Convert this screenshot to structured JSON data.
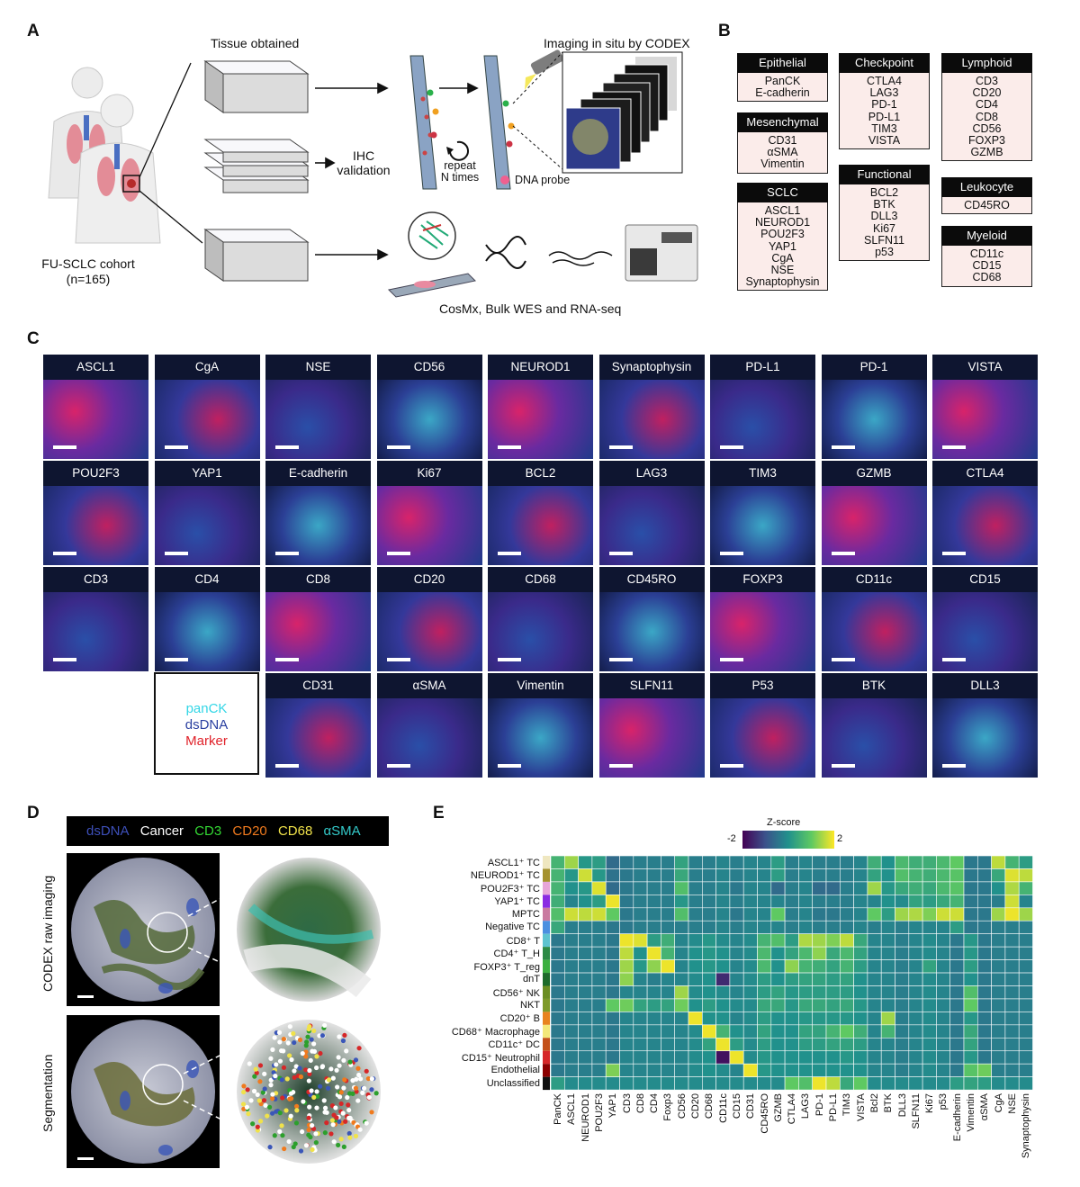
{
  "panel_a": {
    "letter": "A",
    "tissue_obtained": "Tissue obtained",
    "imaging_title": "Imaging in situ by CODEX",
    "ihc_label": [
      "IHC",
      "validation"
    ],
    "repeat_label": [
      "repeat",
      "N times"
    ],
    "dna_probe": "DNA probe",
    "cohort_label": [
      "FU-SCLC cohort",
      "(n=165)"
    ],
    "cosmx_label": "CosMx, Bulk WES and RNA-seq"
  },
  "panel_b": {
    "letter": "B",
    "groups": [
      {
        "title": "Epithelial",
        "items": [
          "PanCK",
          "E-cadherin"
        ]
      },
      {
        "title": "Mesenchymal",
        "items": [
          "CD31",
          "αSMA",
          "Vimentin"
        ]
      },
      {
        "title": "SCLC",
        "items": [
          "ASCL1",
          "NEUROD1",
          "POU2F3",
          "YAP1",
          "CgA",
          "NSE",
          "Synaptophysin"
        ]
      },
      {
        "title": "Checkpoint",
        "items": [
          "CTLA4",
          "LAG3",
          "PD-1",
          "PD-L1",
          "TIM3",
          "VISTA"
        ]
      },
      {
        "title": "Functional",
        "items": [
          "BCL2",
          "BTK",
          "DLL3",
          "Ki67",
          "SLFN11",
          "p53"
        ]
      },
      {
        "title": "Lymphoid",
        "items": [
          "CD3",
          "CD20",
          "CD4",
          "CD8",
          "CD56",
          "FOXP3",
          "GZMB"
        ]
      },
      {
        "title": "Leukocyte",
        "items": [
          "CD45RO"
        ]
      },
      {
        "title": "Myeloid",
        "items": [
          "CD11c",
          "CD15",
          "CD68"
        ]
      }
    ]
  },
  "panel_c": {
    "letter": "C",
    "rows": [
      [
        "ASCL1",
        "CgA",
        "NSE",
        "CD56",
        "NEUROD1",
        "Synaptophysin",
        "PD-L1",
        "PD-1",
        "VISTA"
      ],
      [
        "POU2F3",
        "YAP1",
        "E-cadherin",
        "Ki67",
        "BCL2",
        "LAG3",
        "TIM3",
        "GZMB",
        "CTLA4"
      ],
      [
        "CD3",
        "CD4",
        "CD8",
        "CD20",
        "CD68",
        "CD45RO",
        "FOXP3",
        "CD11c",
        "CD15"
      ],
      [
        "",
        "",
        "CD31",
        "αSMA",
        "Vimentin",
        "SLFN11",
        "P53",
        "BTK",
        "DLL3"
      ]
    ],
    "legend": [
      {
        "text": "panCK",
        "color": "#33d6e6"
      },
      {
        "text": "dsDNA",
        "color": "#2a3fa0"
      },
      {
        "text": "Marker",
        "color": "#e0222a"
      }
    ]
  },
  "panel_d": {
    "letter": "D",
    "legend": [
      {
        "text": "dsDNA",
        "color": "#3d4fb8"
      },
      {
        "text": "Cancer",
        "color": "#ffffff"
      },
      {
        "text": "CD3",
        "color": "#33d633"
      },
      {
        "text": "CD20",
        "color": "#f07a1e"
      },
      {
        "text": "CD68",
        "color": "#f0e24a"
      },
      {
        "text": "αSMA",
        "color": "#33c9c9"
      }
    ],
    "row_labels": [
      "CODEX raw imaging",
      "Segmentation"
    ]
  },
  "panel_e": {
    "letter": "E",
    "colorbar_title": "Z-score",
    "colorbar_min": "-2",
    "colorbar_max": "2"
  },
  "chart_data": {
    "type": "heatmap",
    "title": "",
    "colorbar": {
      "label": "Z-score",
      "range": [
        -2,
        2
      ]
    },
    "rows": [
      "ASCL1⁺ TC",
      "NEUROD1⁺ TC",
      "POU2F3⁺ TC",
      "YAP1⁺ TC",
      "MPTC",
      "Negative TC",
      "CD8⁺ T",
      "CD4⁺ T_H",
      "FOXP3⁺ T_reg",
      "dnT",
      "CD56⁺ NK",
      "NKT",
      "CD20⁺ B",
      "CD68⁺ Macrophage",
      "CD11c⁺ DC",
      "CD15⁺ Neutrophil",
      "Endothelial",
      "Unclassified"
    ],
    "row_colors": [
      "#efe7c0",
      "#a5922f",
      "#e7a6d8",
      "#8a2be2",
      "#c97aa0",
      "#4b8fe0",
      "#5ec3cf",
      "#2d8a46",
      "#3cb040",
      "#1d6b2a",
      "#6b8e23",
      "#7e9a2a",
      "#e8831f",
      "#f3e87a",
      "#c4511a",
      "#d62728",
      "#8b0000",
      "#111111"
    ],
    "columns": [
      "PanCK",
      "ASCL1",
      "NEUROD1",
      "POU2F3",
      "YAP1",
      "CD3",
      "CD8",
      "CD4",
      "Foxp3",
      "CD56",
      "CD20",
      "CD68",
      "CD11c",
      "CD15",
      "CD31",
      "CD45RO",
      "GZMB",
      "CTLA4",
      "LAG3",
      "PD-1",
      "PD-L1",
      "TIM3",
      "VISTA",
      "Bcl2",
      "BTK",
      "DLL3",
      "SLFN11",
      "Ki67",
      "p53",
      "E-cadherin",
      "Vimentin",
      "αSMA",
      "CgA",
      "NSE",
      "Synaptophysin"
    ],
    "values": [
      [
        0.6,
        1.4,
        0.1,
        0.2,
        -0.6,
        -0.4,
        -0.3,
        -0.3,
        -0.3,
        0.3,
        -0.3,
        -0.3,
        -0.2,
        -0.3,
        -0.2,
        -0.2,
        0.2,
        -0.3,
        -0.2,
        -0.3,
        -0.3,
        -0.3,
        -0.2,
        0.5,
        0.0,
        0.7,
        0.5,
        0.5,
        0.7,
        1.0,
        -0.4,
        -0.4,
        1.6,
        0.6,
        0.2
      ],
      [
        0.6,
        0.1,
        1.7,
        0.1,
        -0.5,
        -0.4,
        -0.3,
        -0.3,
        -0.3,
        0.4,
        -0.3,
        -0.3,
        -0.2,
        -0.3,
        -0.2,
        -0.2,
        0.2,
        -0.3,
        -0.2,
        -0.3,
        -0.3,
        -0.3,
        -0.2,
        0.3,
        0.0,
        0.8,
        0.6,
        0.5,
        0.7,
        0.9,
        -0.4,
        -0.4,
        0.4,
        1.8,
        1.6
      ],
      [
        0.6,
        0.0,
        0.1,
        1.8,
        -0.6,
        -0.4,
        -0.3,
        -0.3,
        -0.3,
        0.8,
        -0.3,
        -0.3,
        -0.2,
        -0.4,
        -0.2,
        -0.2,
        -0.6,
        -0.3,
        -0.2,
        -0.6,
        -0.6,
        -0.3,
        -0.2,
        1.4,
        0.1,
        0.4,
        0.5,
        0.4,
        0.7,
        0.9,
        -0.4,
        -0.4,
        0.0,
        1.5,
        0.6
      ],
      [
        0.5,
        -0.2,
        0.0,
        0.2,
        1.9,
        -0.4,
        -0.3,
        -0.3,
        -0.3,
        0.1,
        -0.3,
        -0.3,
        -0.2,
        -0.3,
        -0.2,
        -0.2,
        -0.2,
        -0.3,
        -0.2,
        -0.3,
        -0.3,
        -0.3,
        -0.2,
        -0.2,
        0.0,
        -0.1,
        0.3,
        0.2,
        0.4,
        0.6,
        -0.4,
        -0.4,
        -0.3,
        1.7,
        -0.2
      ],
      [
        0.8,
        1.7,
        1.6,
        1.7,
        1.0,
        -0.4,
        -0.3,
        -0.3,
        -0.3,
        0.8,
        -0.3,
        -0.3,
        -0.2,
        -0.4,
        -0.2,
        -0.2,
        1.0,
        -0.3,
        -0.2,
        -0.4,
        -0.4,
        -0.3,
        -0.2,
        1.0,
        0.2,
        1.4,
        1.5,
        1.2,
        1.7,
        1.7,
        -0.4,
        -0.4,
        1.4,
        1.9,
        1.4
      ],
      [
        0.4,
        -0.3,
        -0.3,
        -0.3,
        -0.4,
        -0.4,
        -0.3,
        -0.3,
        -0.3,
        -0.3,
        -0.3,
        -0.3,
        -0.2,
        -0.3,
        -0.2,
        -0.2,
        -0.2,
        -0.3,
        -0.2,
        -0.3,
        -0.3,
        -0.3,
        -0.2,
        -0.3,
        -0.2,
        -0.3,
        -0.2,
        -0.2,
        -0.2,
        0.2,
        -0.4,
        -0.4,
        -0.3,
        -0.3,
        -0.3
      ],
      [
        -0.4,
        -0.3,
        -0.3,
        -0.3,
        -0.4,
        1.9,
        1.8,
        0.2,
        0.5,
        -0.2,
        -0.1,
        0.1,
        -0.1,
        -0.2,
        -0.1,
        0.6,
        0.8,
        0.2,
        1.5,
        1.4,
        1.2,
        1.6,
        0.4,
        -0.2,
        -0.2,
        -0.3,
        -0.2,
        -0.1,
        -0.2,
        -0.4,
        0.1,
        -0.4,
        -0.3,
        -0.3,
        -0.3
      ],
      [
        -0.4,
        -0.3,
        -0.3,
        -0.3,
        -0.4,
        1.6,
        0.0,
        1.9,
        0.6,
        -0.2,
        0.0,
        0.1,
        0.0,
        -0.2,
        -0.1,
        0.7,
        0.0,
        0.3,
        0.7,
        1.3,
        0.4,
        0.7,
        0.3,
        -0.2,
        -0.2,
        -0.3,
        -0.2,
        -0.1,
        -0.2,
        -0.4,
        0.1,
        -0.4,
        -0.3,
        -0.3,
        -0.3
      ],
      [
        -0.4,
        -0.3,
        -0.3,
        -0.3,
        -0.4,
        1.4,
        0.1,
        1.3,
        1.9,
        -0.2,
        0.0,
        0.1,
        0.0,
        -0.2,
        -0.1,
        0.7,
        0.0,
        1.3,
        0.6,
        0.5,
        0.3,
        0.6,
        0.2,
        -0.2,
        -0.2,
        -0.3,
        -0.2,
        0.3,
        -0.2,
        -0.4,
        0.2,
        -0.4,
        -0.3,
        -0.3,
        -0.3
      ],
      [
        -0.4,
        -0.3,
        -0.3,
        -0.3,
        -0.4,
        1.3,
        -0.2,
        -0.3,
        -0.2,
        -0.2,
        -0.1,
        0.0,
        -1.5,
        -0.2,
        -0.1,
        0.2,
        0.0,
        0.2,
        0.3,
        0.3,
        0.2,
        0.3,
        0.0,
        -0.2,
        -0.2,
        -0.3,
        -0.2,
        -0.1,
        -0.2,
        -0.4,
        0.0,
        -0.4,
        -0.3,
        -0.3,
        -0.3
      ],
      [
        -0.4,
        -0.3,
        -0.3,
        -0.3,
        -0.4,
        -0.2,
        -0.2,
        -0.2,
        -0.2,
        1.4,
        -0.1,
        0.0,
        -0.1,
        -0.2,
        -0.1,
        0.2,
        0.3,
        0.1,
        0.2,
        0.2,
        0.2,
        0.2,
        0.0,
        -0.2,
        -0.2,
        -0.3,
        -0.2,
        -0.1,
        -0.2,
        -0.4,
        0.8,
        -0.4,
        -0.3,
        -0.3,
        -0.3
      ],
      [
        -0.4,
        -0.3,
        -0.3,
        -0.3,
        1.0,
        1.1,
        0.3,
        0.2,
        0.3,
        1.1,
        0.0,
        0.2,
        0.0,
        -0.1,
        -0.1,
        0.4,
        0.4,
        0.1,
        0.4,
        0.4,
        0.3,
        0.4,
        0.1,
        -0.2,
        -0.2,
        -0.3,
        -0.2,
        -0.1,
        -0.2,
        -0.4,
        1.0,
        -0.4,
        -0.3,
        -0.3,
        -0.3
      ],
      [
        -0.4,
        -0.3,
        -0.3,
        -0.3,
        -0.4,
        -0.2,
        -0.2,
        -0.2,
        -0.2,
        -0.2,
        1.9,
        0.0,
        0.0,
        -0.2,
        -0.1,
        0.2,
        0.0,
        0.0,
        0.1,
        0.1,
        0.1,
        0.1,
        0.0,
        -0.2,
        1.4,
        -0.3,
        -0.2,
        -0.1,
        -0.2,
        -0.4,
        0.1,
        -0.4,
        -0.3,
        -0.3,
        -0.3
      ],
      [
        -0.4,
        -0.3,
        -0.3,
        -0.3,
        -0.4,
        -0.2,
        -0.2,
        -0.2,
        -0.2,
        -0.2,
        -0.1,
        1.9,
        0.6,
        0.0,
        -0.1,
        0.3,
        0.0,
        0.0,
        0.3,
        0.3,
        0.6,
        1.0,
        0.5,
        -0.2,
        0.6,
        -0.3,
        -0.2,
        -0.1,
        -0.2,
        -0.4,
        0.4,
        -0.4,
        -0.3,
        -0.3,
        -0.3
      ],
      [
        -0.4,
        -0.3,
        -0.3,
        -0.3,
        -0.4,
        -0.2,
        -0.2,
        -0.2,
        -0.2,
        -0.2,
        -0.1,
        0.3,
        1.9,
        0.2,
        -0.1,
        0.2,
        0.0,
        0.0,
        0.2,
        0.2,
        0.3,
        0.3,
        0.2,
        -0.2,
        -0.2,
        -0.3,
        -0.2,
        -0.1,
        -0.2,
        -0.4,
        0.3,
        -0.4,
        -0.3,
        -0.3,
        -0.3
      ],
      [
        -0.4,
        -0.3,
        -0.3,
        -0.3,
        -0.4,
        -0.2,
        -0.2,
        -0.2,
        -0.2,
        -0.2,
        -0.1,
        0.0,
        -1.8,
        1.9,
        -0.1,
        0.1,
        0.0,
        0.0,
        0.0,
        0.0,
        0.0,
        0.1,
        0.0,
        -0.2,
        -0.2,
        -0.3,
        -0.2,
        -0.1,
        -0.2,
        -0.4,
        0.1,
        -0.4,
        -0.3,
        -0.3,
        -0.3
      ],
      [
        -0.4,
        -0.3,
        -0.3,
        -0.3,
        1.2,
        -0.2,
        -0.2,
        -0.2,
        -0.2,
        -0.2,
        -0.1,
        0.0,
        -0.1,
        -0.2,
        1.9,
        0.1,
        0.0,
        0.0,
        0.0,
        0.0,
        0.0,
        0.0,
        0.0,
        -0.2,
        -0.2,
        -0.3,
        -0.2,
        -0.1,
        -0.2,
        -0.4,
        0.9,
        1.1,
        -0.3,
        -0.3,
        -0.3
      ],
      [
        0.2,
        -0.1,
        -0.1,
        -0.1,
        -0.1,
        -0.1,
        -0.1,
        -0.1,
        -0.1,
        -0.1,
        -0.1,
        -0.1,
        -0.1,
        -0.1,
        -0.1,
        -0.1,
        -0.1,
        1.0,
        0.8,
        1.9,
        1.6,
        0.4,
        1.0,
        -0.1,
        -0.1,
        -0.1,
        -0.1,
        -0.1,
        -0.1,
        0.2,
        0.3,
        0.2,
        -0.1,
        -0.1,
        -0.1
      ]
    ]
  }
}
